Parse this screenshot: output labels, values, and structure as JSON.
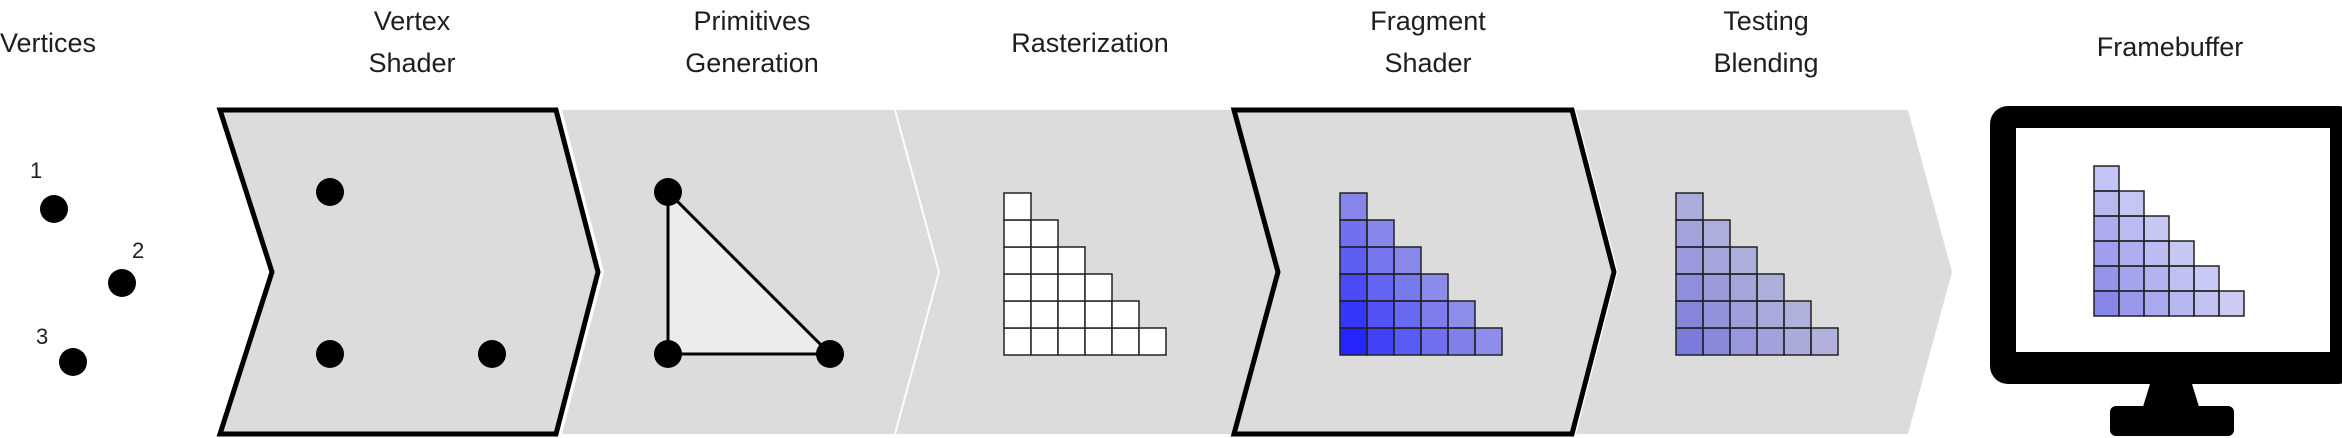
{
  "stages": [
    {
      "id": "vertices",
      "title_lines": [
        "Vertices"
      ],
      "highlighted": false
    },
    {
      "id": "vertex-shader",
      "title_lines": [
        "Vertex",
        "Shader"
      ],
      "highlighted": true
    },
    {
      "id": "primitives-generation",
      "title_lines": [
        "Primitives",
        "Generation"
      ],
      "highlighted": false
    },
    {
      "id": "rasterization",
      "title_lines": [
        "Rasterization"
      ],
      "highlighted": false
    },
    {
      "id": "fragment-shader",
      "title_lines": [
        "Fragment",
        "Shader"
      ],
      "highlighted": true
    },
    {
      "id": "testing-blending",
      "title_lines": [
        "Testing",
        "Blending"
      ],
      "highlighted": false
    },
    {
      "id": "framebuffer",
      "title_lines": [
        "Framebuffer"
      ],
      "highlighted": false
    }
  ],
  "vertex_labels": [
    "1",
    "2",
    "3"
  ],
  "colors": {
    "chevron_fill": "#dcdcdc",
    "outline": "#000000",
    "triangle_fill": "#ececec",
    "fragment_blue": "#1a1aff",
    "blend_blue": "#8080f0",
    "monitor_body": "#000000"
  }
}
